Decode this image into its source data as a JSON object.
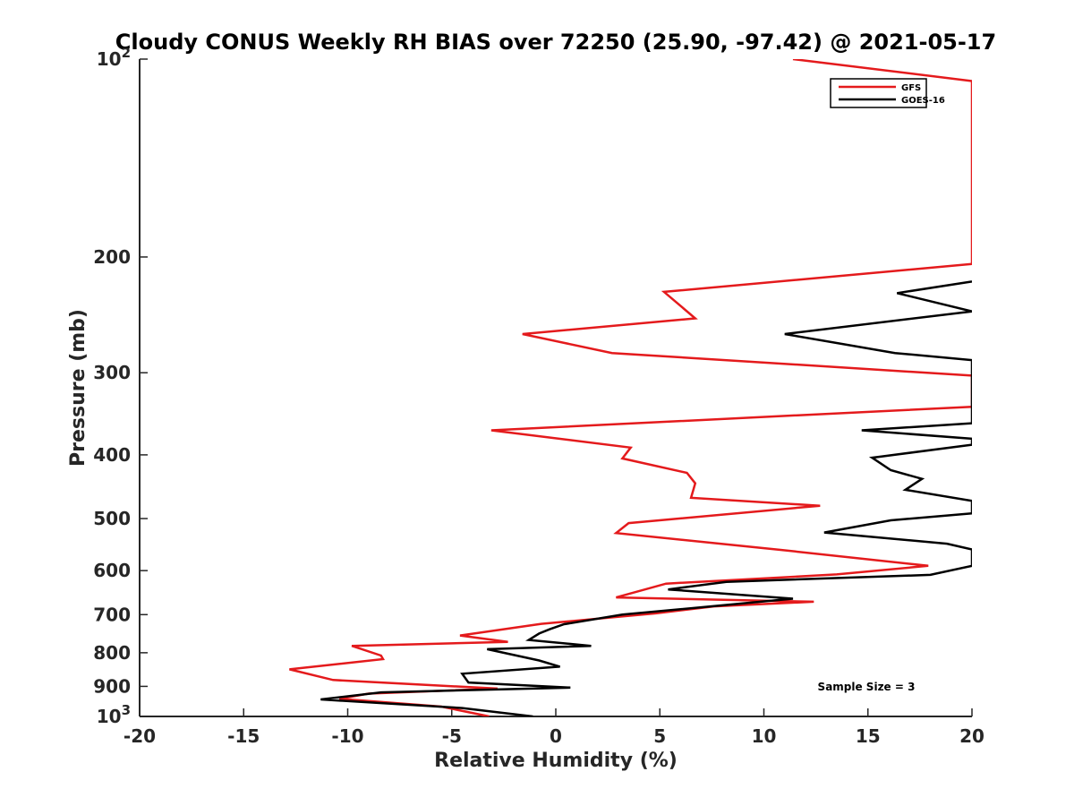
{
  "chart_data": {
    "type": "line",
    "title": "Cloudy CONUS Weekly RH BIAS over 72250 (25.90, -97.42) @ 2021-05-17",
    "xlabel": "Relative Humidity (%)",
    "ylabel": "Pressure (mb)",
    "xlim": [
      -20,
      20
    ],
    "ylim": [
      1000,
      100
    ],
    "y_scale": "log",
    "y_reversed": true,
    "grid": false,
    "x_ticks": [
      -20,
      -15,
      -10,
      -5,
      0,
      5,
      10,
      15,
      20
    ],
    "x_tick_labels": [
      "-20",
      "-15",
      "-10",
      "-5",
      "0",
      "5",
      "10",
      "15",
      "20"
    ],
    "y_ticks": [
      100,
      200,
      300,
      400,
      500,
      600,
      700,
      800,
      900,
      1000
    ],
    "y_tick_labels": [
      "10^2",
      "200",
      "300",
      "400",
      "500",
      "600",
      "700",
      "800",
      "900",
      "10^3"
    ],
    "legend_position": "top-right",
    "annotation": "Sample Size = 3",
    "series": [
      {
        "name": "GFS",
        "color": "#e41a1c",
        "points": [
          [
            11.4,
            100
          ],
          [
            20,
            108
          ],
          [
            20,
            205
          ],
          [
            5.2,
            226
          ],
          [
            6.7,
            248
          ],
          [
            -1.6,
            262
          ],
          [
            2.7,
            280
          ],
          [
            20,
            303
          ],
          [
            20,
            338
          ],
          [
            -3.1,
            367
          ],
          [
            3.6,
            390
          ],
          [
            3.2,
            405
          ],
          [
            6.3,
            426
          ],
          [
            6.7,
            442
          ],
          [
            6.5,
            465
          ],
          [
            12.7,
            478
          ],
          [
            3.5,
            508
          ],
          [
            2.9,
            526
          ],
          [
            10.8,
            558
          ],
          [
            17.9,
            590
          ],
          [
            13.5,
            608
          ],
          [
            5.3,
            628
          ],
          [
            2.9,
            659
          ],
          [
            12.4,
            669
          ],
          [
            7.6,
            680
          ],
          [
            4.8,
            697
          ],
          [
            -0.7,
            723
          ],
          [
            -4.6,
            753
          ],
          [
            -2.3,
            770
          ],
          [
            -9.8,
            781
          ],
          [
            -8.4,
            808
          ],
          [
            -8.3,
            818
          ],
          [
            -12.8,
            848
          ],
          [
            -10.7,
            880
          ],
          [
            -2.8,
            907
          ],
          [
            -9.0,
            923
          ],
          [
            -10.4,
            940
          ],
          [
            -5.5,
            966
          ],
          [
            -3.2,
            1000
          ]
        ]
      },
      {
        "name": "GOES-16",
        "color": "#000000",
        "points": [
          [
            20,
            218
          ],
          [
            16.4,
            227
          ],
          [
            20,
            242
          ],
          [
            11.0,
            262
          ],
          [
            16.3,
            280
          ],
          [
            20,
            287
          ],
          [
            20,
            358
          ],
          [
            14.7,
            367
          ],
          [
            20,
            378
          ],
          [
            20,
            386
          ],
          [
            15.2,
            404
          ],
          [
            16.1,
            422
          ],
          [
            17.6,
            435
          ],
          [
            16.8,
            452
          ],
          [
            20,
            470
          ],
          [
            20,
            491
          ],
          [
            16.1,
            503
          ],
          [
            12.9,
            525
          ],
          [
            18.8,
            546
          ],
          [
            20,
            557
          ],
          [
            20,
            590
          ],
          [
            18.0,
            609
          ],
          [
            8.2,
            624
          ],
          [
            5.4,
            641
          ],
          [
            11.4,
            662
          ],
          [
            3.2,
            700
          ],
          [
            0.4,
            724
          ],
          [
            -0.3,
            737
          ],
          [
            -0.8,
            748
          ],
          [
            -1.3,
            765
          ],
          [
            1.7,
            781
          ],
          [
            -3.3,
            790
          ],
          [
            -0.8,
            822
          ],
          [
            0.2,
            840
          ],
          [
            -4.5,
            861
          ],
          [
            -4.2,
            888
          ],
          [
            0.7,
            904
          ],
          [
            -8.4,
            919
          ],
          [
            -11.3,
            942
          ],
          [
            -4.5,
            971
          ],
          [
            -1.1,
            1000
          ]
        ]
      }
    ]
  }
}
